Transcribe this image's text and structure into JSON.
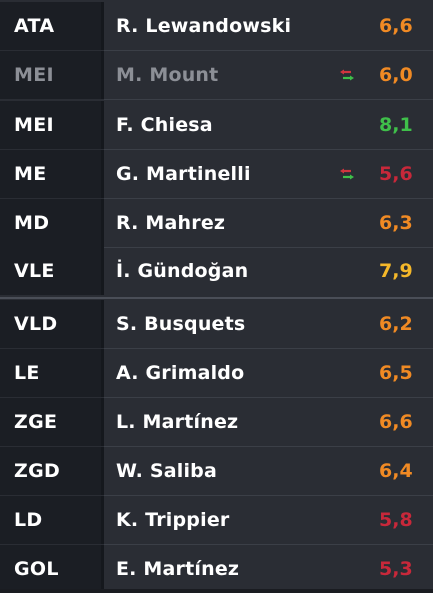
{
  "lineup": [
    {
      "pos": "ATA",
      "name": "R. Lewandowski",
      "rating": "6,6",
      "rating_color": "#f08a24",
      "swap": false,
      "dim": false
    },
    {
      "pos": "MEI",
      "name": "M. Mount",
      "rating": "6,0",
      "rating_color": "#f08a24",
      "swap": true,
      "dim": true
    },
    {
      "pos": "MEI",
      "name": "F. Chiesa",
      "rating": "8,1",
      "rating_color": "#3fbf4a",
      "swap": false,
      "dim": false
    },
    {
      "pos": "ME",
      "name": "G. Martinelli",
      "rating": "5,6",
      "rating_color": "#c8283a",
      "swap": true,
      "dim": false
    },
    {
      "pos": "MD",
      "name": "R. Mahrez",
      "rating": "6,3",
      "rating_color": "#f08a24",
      "swap": false,
      "dim": false
    },
    {
      "pos": "VLE",
      "name": "İ. Gündoğan",
      "rating": "7,9",
      "rating_color": "#f5b82a",
      "swap": false,
      "dim": false
    },
    {
      "pos": "VLD",
      "name": "S. Busquets",
      "rating": "6,2",
      "rating_color": "#f08a24",
      "swap": false,
      "dim": false
    },
    {
      "pos": "LE",
      "name": "A. Grimaldo",
      "rating": "6,5",
      "rating_color": "#f08a24",
      "swap": false,
      "dim": false
    },
    {
      "pos": "ZGE",
      "name": "L. Martínez",
      "rating": "6,6",
      "rating_color": "#f08a24",
      "swap": false,
      "dim": false
    },
    {
      "pos": "ZGD",
      "name": "W. Saliba",
      "rating": "6,4",
      "rating_color": "#f08a24",
      "swap": false,
      "dim": false
    },
    {
      "pos": "LD",
      "name": "K. Trippier",
      "rating": "5,8",
      "rating_color": "#c8283a",
      "swap": false,
      "dim": false
    },
    {
      "pos": "GOL",
      "name": "E. Martínez",
      "rating": "5,3",
      "rating_color": "#c8283a",
      "swap": false,
      "dim": false
    }
  ],
  "icons": {
    "swap": "substitution-arrows-icon"
  },
  "colors": {
    "swap_in": "#3fbf4a",
    "swap_out": "#d0343f"
  }
}
